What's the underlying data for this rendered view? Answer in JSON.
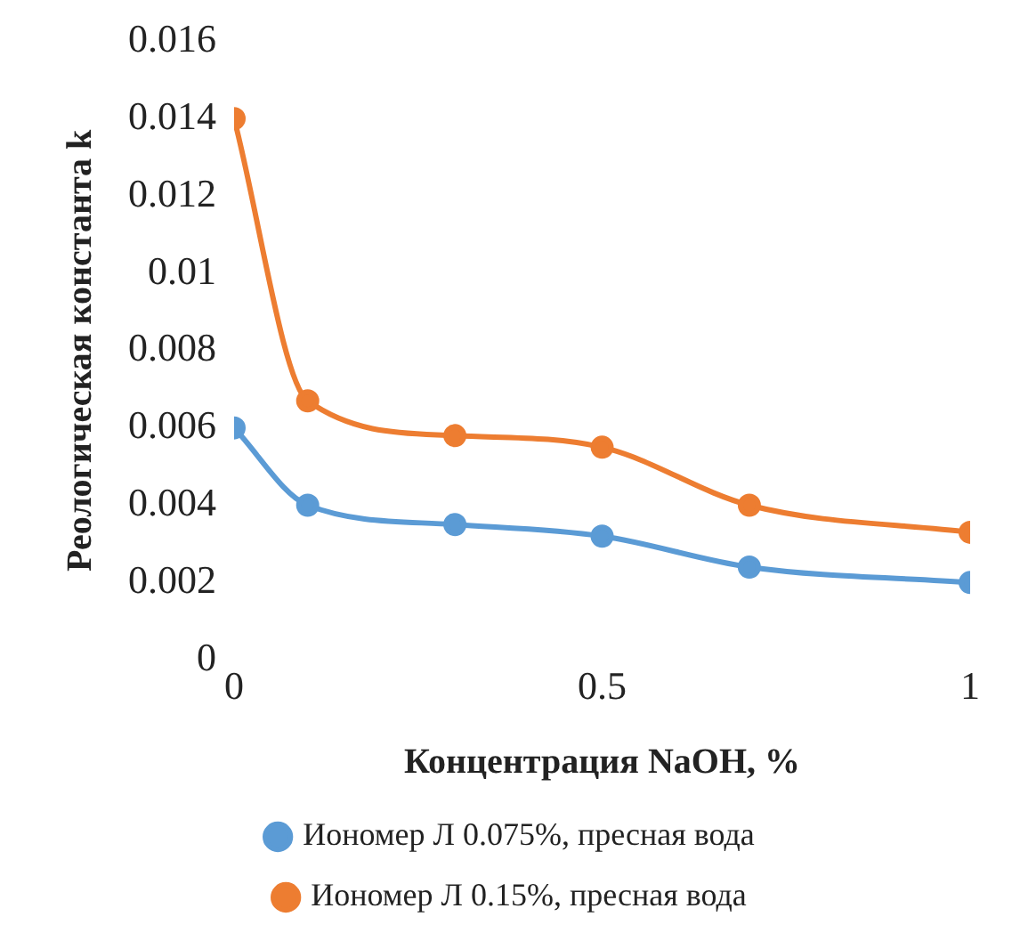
{
  "chart_data": {
    "type": "line",
    "xlabel": "Концентрация NaOH, %",
    "ylabel": "Реологическая константа k",
    "x": [
      0,
      0.1,
      0.3,
      0.5,
      0.7,
      1
    ],
    "series": [
      {
        "name": "Иономер Л 0.075%, пресная вода",
        "color": "#5b9bd5",
        "values": [
          0.006,
          0.004,
          0.0035,
          0.0032,
          0.0024,
          0.002
        ]
      },
      {
        "name": "Иономер Л 0.15%, пресная вода",
        "color": "#ed7d31",
        "values": [
          0.014,
          0.0067,
          0.0058,
          0.0055,
          0.004,
          0.0033
        ]
      }
    ],
    "xlim": [
      0,
      1
    ],
    "xticks": [
      0,
      0.5,
      1
    ],
    "ylim": [
      0,
      0.016
    ],
    "yticks": [
      0,
      0.002,
      0.004,
      0.006,
      0.008,
      0.01,
      0.012,
      0.014,
      0.016
    ],
    "grid": false,
    "legend": "bottom",
    "marker": "circle",
    "line_style": "solid"
  }
}
